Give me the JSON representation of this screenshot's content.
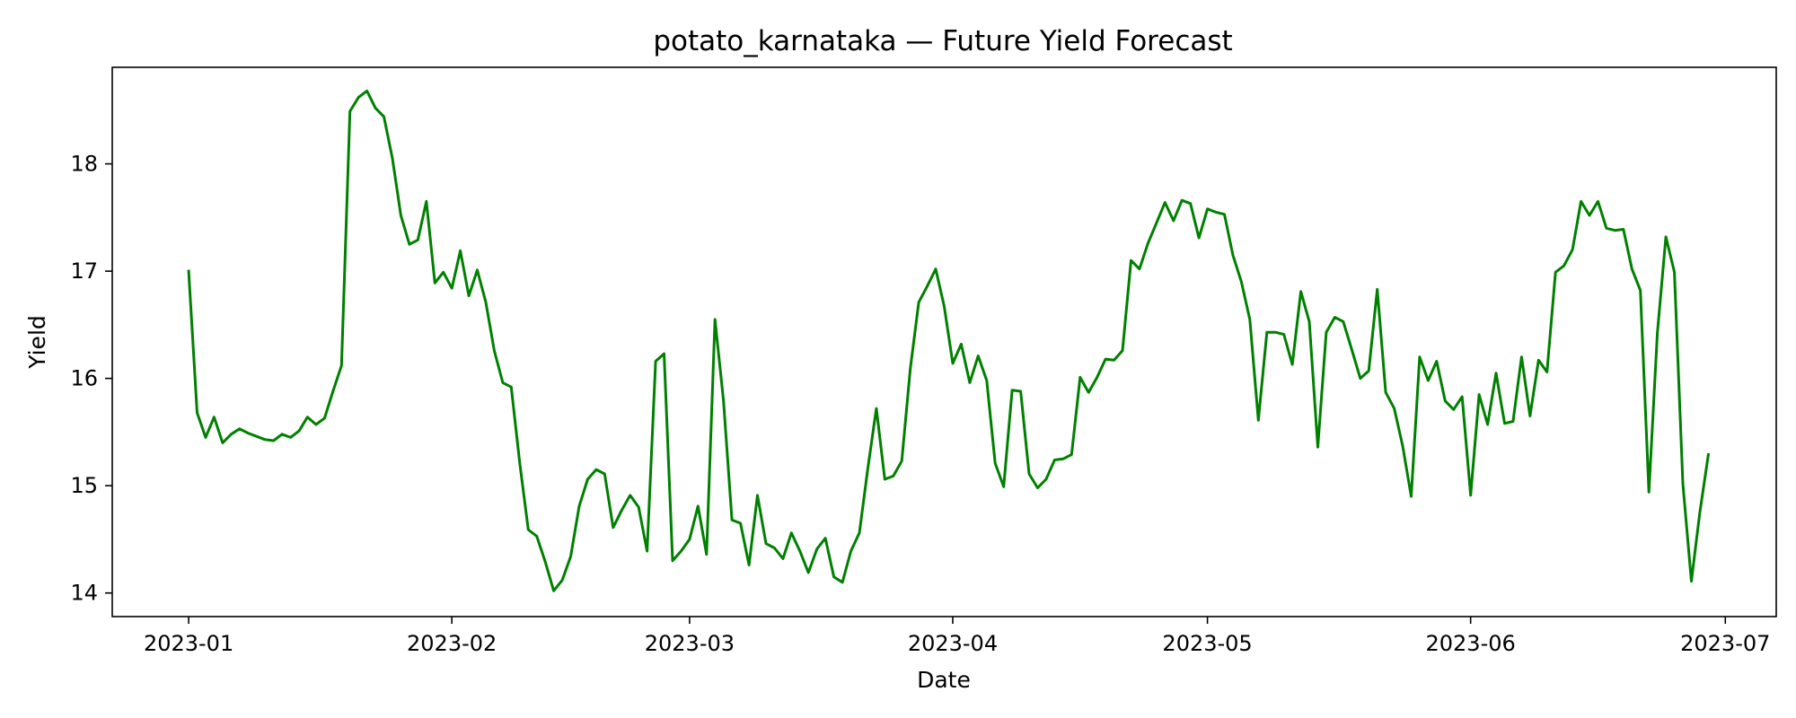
{
  "chart_data": {
    "type": "line",
    "title": "potato_karnataka — Future Yield Forecast",
    "xlabel": "Date",
    "ylabel": "Yield",
    "xlim": [
      "2022-12-23",
      "2023-07-07"
    ],
    "ylim": [
      13.78,
      18.9
    ],
    "x_ticks": [
      "2023-01",
      "2023-02",
      "2023-03",
      "2023-04",
      "2023-05",
      "2023-06",
      "2023-07"
    ],
    "y_ticks": [
      14,
      15,
      16,
      17,
      18
    ],
    "grid": false,
    "legend": "none",
    "line_color": "#008000",
    "series": [
      {
        "dates": [
          "2023-01-01",
          "2023-01-02",
          "2023-01-03",
          "2023-01-04",
          "2023-01-05",
          "2023-01-06",
          "2023-01-07",
          "2023-01-08",
          "2023-01-09",
          "2023-01-10",
          "2023-01-11",
          "2023-01-12",
          "2023-01-13",
          "2023-01-14",
          "2023-01-15",
          "2023-01-16",
          "2023-01-17",
          "2023-01-18",
          "2023-01-19",
          "2023-01-20",
          "2023-01-21",
          "2023-01-22",
          "2023-01-23",
          "2023-01-24",
          "2023-01-25",
          "2023-01-26",
          "2023-01-27",
          "2023-01-28",
          "2023-01-29",
          "2023-01-30",
          "2023-01-31",
          "2023-02-01",
          "2023-02-02",
          "2023-02-03",
          "2023-02-04",
          "2023-02-05",
          "2023-02-06",
          "2023-02-07",
          "2023-02-08",
          "2023-02-09",
          "2023-02-10",
          "2023-02-11",
          "2023-02-12",
          "2023-02-13",
          "2023-02-14",
          "2023-02-15",
          "2023-02-16",
          "2023-02-17",
          "2023-02-18",
          "2023-02-19",
          "2023-02-20",
          "2023-02-21",
          "2023-02-22",
          "2023-02-23",
          "2023-02-24",
          "2023-02-25",
          "2023-02-26",
          "2023-02-27",
          "2023-02-28",
          "2023-03-01",
          "2023-03-02",
          "2023-03-03",
          "2023-03-04",
          "2023-03-05",
          "2023-03-06",
          "2023-03-07",
          "2023-03-08",
          "2023-03-09",
          "2023-03-10",
          "2023-03-11",
          "2023-03-12",
          "2023-03-13",
          "2023-03-14",
          "2023-03-15",
          "2023-03-16",
          "2023-03-17",
          "2023-03-18",
          "2023-03-19",
          "2023-03-20",
          "2023-03-21",
          "2023-03-22",
          "2023-03-23",
          "2023-03-24",
          "2023-03-25",
          "2023-03-26",
          "2023-03-27",
          "2023-03-28",
          "2023-03-29",
          "2023-03-30",
          "2023-03-31",
          "2023-04-01",
          "2023-04-02",
          "2023-04-03",
          "2023-04-04",
          "2023-04-05",
          "2023-04-06",
          "2023-04-07",
          "2023-04-08",
          "2023-04-09",
          "2023-04-10",
          "2023-04-11",
          "2023-04-12",
          "2023-04-13",
          "2023-04-14",
          "2023-04-15",
          "2023-04-16",
          "2023-04-17",
          "2023-04-18",
          "2023-04-19",
          "2023-04-20",
          "2023-04-21",
          "2023-04-22",
          "2023-04-23",
          "2023-04-24",
          "2023-04-25",
          "2023-04-26",
          "2023-04-27",
          "2023-04-28",
          "2023-04-29",
          "2023-04-30",
          "2023-05-01",
          "2023-05-02",
          "2023-05-03",
          "2023-05-04",
          "2023-05-05",
          "2023-05-06",
          "2023-05-07",
          "2023-05-08",
          "2023-05-09",
          "2023-05-10",
          "2023-05-11",
          "2023-05-12",
          "2023-05-13",
          "2023-05-14",
          "2023-05-15",
          "2023-05-16",
          "2023-05-17",
          "2023-05-18",
          "2023-05-19",
          "2023-05-20",
          "2023-05-21",
          "2023-05-22",
          "2023-05-23",
          "2023-05-24",
          "2023-05-25",
          "2023-05-26",
          "2023-05-27",
          "2023-05-28",
          "2023-05-29",
          "2023-05-30",
          "2023-05-31",
          "2023-06-01",
          "2023-06-02",
          "2023-06-03",
          "2023-06-04",
          "2023-06-05",
          "2023-06-06",
          "2023-06-07",
          "2023-06-08",
          "2023-06-09",
          "2023-06-10",
          "2023-06-11",
          "2023-06-12",
          "2023-06-13",
          "2023-06-14",
          "2023-06-15",
          "2023-06-16",
          "2023-06-17",
          "2023-06-18",
          "2023-06-19",
          "2023-06-20",
          "2023-06-21",
          "2023-06-22",
          "2023-06-23",
          "2023-06-24",
          "2023-06-25",
          "2023-06-26",
          "2023-06-27",
          "2023-06-28",
          "2023-06-29"
        ],
        "values": [
          17.0,
          15.68,
          15.45,
          15.64,
          15.4,
          15.48,
          15.53,
          15.49,
          15.46,
          15.43,
          15.42,
          15.48,
          15.45,
          15.51,
          15.64,
          15.57,
          15.63,
          15.88,
          16.12,
          18.49,
          18.62,
          18.68,
          18.52,
          18.44,
          18.05,
          17.52,
          17.25,
          17.29,
          17.65,
          16.89,
          16.99,
          16.84,
          17.19,
          16.77,
          17.01,
          16.71,
          16.26,
          15.96,
          15.92,
          15.21,
          14.59,
          14.53,
          14.29,
          14.02,
          14.12,
          14.34,
          14.81,
          15.06,
          15.15,
          15.11,
          14.61,
          14.77,
          14.91,
          14.8,
          14.39,
          16.16,
          16.23,
          14.3,
          14.39,
          14.5,
          14.81,
          14.36,
          16.55,
          15.79,
          14.68,
          14.65,
          14.26,
          14.91,
          14.46,
          14.42,
          14.32,
          14.56,
          14.39,
          14.19,
          14.41,
          14.51,
          14.15,
          14.1,
          14.39,
          14.56,
          15.16,
          15.72,
          15.06,
          15.09,
          15.23,
          16.09,
          16.71,
          16.86,
          17.02,
          16.67,
          16.14,
          16.32,
          15.96,
          16.21,
          15.98,
          15.21,
          14.99,
          15.89,
          15.88,
          15.11,
          14.98,
          15.06,
          15.24,
          15.25,
          15.29,
          16.01,
          15.87,
          16.01,
          16.18,
          16.17,
          16.26,
          17.1,
          17.02,
          17.26,
          17.45,
          17.64,
          17.47,
          17.66,
          17.63,
          17.31,
          17.58,
          17.55,
          17.53,
          17.15,
          16.9,
          16.55,
          15.61,
          16.43,
          16.43,
          16.41,
          16.13,
          16.81,
          16.53,
          15.36,
          16.43,
          16.57,
          16.53,
          16.27,
          16.0,
          16.07,
          16.83,
          15.87,
          15.72,
          15.37,
          14.9,
          16.2,
          15.98,
          16.16,
          15.79,
          15.71,
          15.83,
          14.91,
          15.85,
          15.57,
          16.05,
          15.58,
          15.6,
          16.2,
          15.65,
          16.17,
          16.06,
          16.99,
          17.05,
          17.2,
          17.65,
          17.52,
          17.65,
          17.4,
          17.38,
          17.39,
          17.02,
          16.82,
          14.94,
          16.42,
          17.32,
          16.99,
          15.02,
          14.11,
          14.75,
          15.29
        ]
      }
    ]
  }
}
